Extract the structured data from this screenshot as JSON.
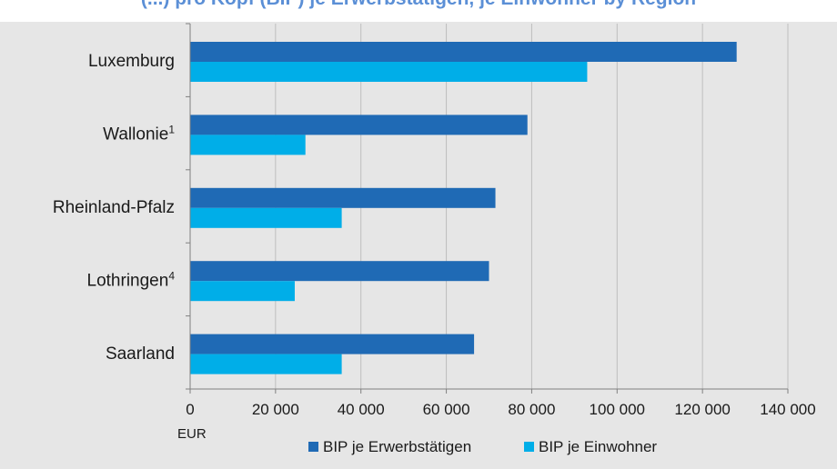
{
  "title": "(...) pro Kopf (BIP) je Erwerbstätigen, je Einwohner by Region",
  "chart_data": {
    "type": "bar",
    "orientation": "horizontal",
    "categories": [
      "Luxemburg",
      "Wallonie",
      "Rheinland-Pfalz",
      "Lothringen",
      "Saarland"
    ],
    "category_footnotes": [
      "",
      "1",
      "",
      "4",
      ""
    ],
    "series": [
      {
        "name": "BIP je Erwerbstätigen",
        "color": "#1f6ab5",
        "values": [
          128000,
          79000,
          71500,
          70000,
          66500
        ]
      },
      {
        "name": "BIP je Einwohner",
        "color": "#00aee8",
        "values": [
          93000,
          27000,
          35500,
          24500,
          35500
        ]
      }
    ],
    "xlim": [
      0,
      140000
    ],
    "xticks": [
      0,
      20000,
      40000,
      60000,
      80000,
      100000,
      120000,
      140000
    ],
    "xtick_labels": [
      "0",
      "20 000",
      "40 000",
      "60 000",
      "80 000",
      "100 000",
      "120 000",
      "140 000"
    ],
    "xlabel": "EUR",
    "grid": "vertical",
    "legend_position": "bottom"
  }
}
